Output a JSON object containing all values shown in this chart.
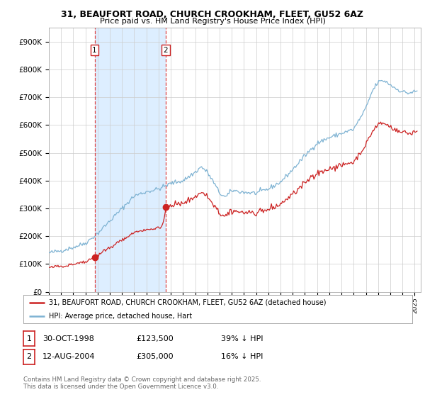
{
  "title1": "31, BEAUFORT ROAD, CHURCH CROOKHAM, FLEET, GU52 6AZ",
  "title2": "Price paid vs. HM Land Registry's House Price Index (HPI)",
  "legend1": "31, BEAUFORT ROAD, CHURCH CROOKHAM, FLEET, GU52 6AZ (detached house)",
  "legend2": "HPI: Average price, detached house, Hart",
  "sale1_date": "30-OCT-1998",
  "sale1_price": 123500,
  "sale1_hpi": "39% ↓ HPI",
  "sale2_date": "12-AUG-2004",
  "sale2_price": 305000,
  "sale2_hpi": "16% ↓ HPI",
  "footer": "Contains HM Land Registry data © Crown copyright and database right 2025.\nThis data is licensed under the Open Government Licence v3.0.",
  "ylim": [
    0,
    950000
  ],
  "hpi_color": "#7fb3d3",
  "price_color": "#cc2222",
  "vline_color": "#dd4444",
  "fill_color": "#ddeeff",
  "background_color": "#ffffff",
  "grid_color": "#cccccc",
  "box_edge_color": "#cc2222"
}
